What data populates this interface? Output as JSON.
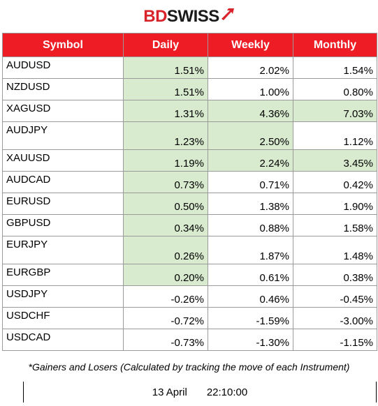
{
  "brand": {
    "name_part1": "BD",
    "name_part2": "SWISS",
    "icon": "bdswiss-arrow-logo",
    "color_primary": "#d9232a"
  },
  "table": {
    "header_color": "#ee1c25",
    "highlight_color": "#d8ebcf",
    "headers": [
      "Symbol",
      "Daily",
      "Weekly",
      "Monthly"
    ],
    "rows": [
      {
        "symbol": "AUDUSD",
        "daily": "1.51%",
        "weekly": "2.02%",
        "monthly": "1.54%",
        "hl": [
          true,
          false,
          false
        ]
      },
      {
        "symbol": "NZDUSD",
        "daily": "1.51%",
        "weekly": "1.00%",
        "monthly": "0.80%",
        "hl": [
          true,
          false,
          false
        ]
      },
      {
        "symbol": "XAGUSD",
        "daily": "1.31%",
        "weekly": "4.36%",
        "monthly": "7.03%",
        "hl": [
          true,
          true,
          true
        ]
      },
      {
        "symbol": "AUDJPY",
        "daily": "1.23%",
        "weekly": "2.50%",
        "monthly": "1.12%",
        "hl": [
          true,
          true,
          false
        ]
      },
      {
        "symbol": "XAUUSD",
        "daily": "1.19%",
        "weekly": "2.24%",
        "monthly": "3.45%",
        "hl": [
          true,
          true,
          true
        ]
      },
      {
        "symbol": "AUDCAD",
        "daily": "0.73%",
        "weekly": "0.71%",
        "monthly": "0.42%",
        "hl": [
          true,
          false,
          false
        ]
      },
      {
        "symbol": "EURUSD",
        "daily": "0.50%",
        "weekly": "1.38%",
        "monthly": "1.90%",
        "hl": [
          true,
          false,
          false
        ]
      },
      {
        "symbol": "GBPUSD",
        "daily": "0.34%",
        "weekly": "0.88%",
        "monthly": "1.58%",
        "hl": [
          true,
          false,
          false
        ]
      },
      {
        "symbol": "EURJPY",
        "daily": "0.26%",
        "weekly": "1.87%",
        "monthly": "1.48%",
        "hl": [
          true,
          false,
          false
        ]
      },
      {
        "symbol": "EURGBP",
        "daily": "0.20%",
        "weekly": "0.61%",
        "monthly": "0.38%",
        "hl": [
          true,
          false,
          false
        ]
      },
      {
        "symbol": "USDJPY",
        "daily": "-0.26%",
        "weekly": "0.46%",
        "monthly": "-0.45%",
        "hl": [
          false,
          false,
          false
        ]
      },
      {
        "symbol": "USDCHF",
        "daily": "-0.72%",
        "weekly": "-1.59%",
        "monthly": "-3.00%",
        "hl": [
          false,
          false,
          false
        ]
      },
      {
        "symbol": "USDCAD",
        "daily": "-0.73%",
        "weekly": "-1.30%",
        "monthly": "-1.15%",
        "hl": [
          false,
          false,
          false
        ]
      }
    ]
  },
  "footer": {
    "note": "*Gainers and Losers (Calculated by tracking the move of each Instrument)",
    "date": "13 April",
    "time": "22:10:00"
  }
}
